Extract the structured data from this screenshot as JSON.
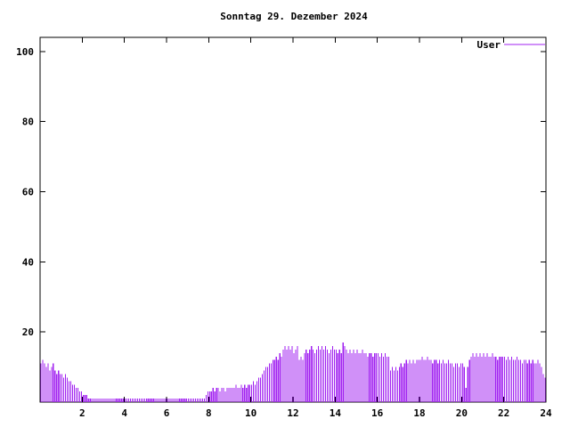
{
  "page": {
    "background": "#ffffff"
  },
  "chart": {
    "title": "Sonntag 29. Dezember 2024",
    "legend": {
      "label": "User",
      "line_color": "#a020f0"
    }
  },
  "chart_data": {
    "type": "bar",
    "title": "Sonntag 29. Dezember 2024",
    "xlabel": "",
    "ylabel": "",
    "x_unit": "hour_of_day",
    "x_range": [
      0,
      24
    ],
    "ylim": [
      0,
      104
    ],
    "x_ticks": [
      2,
      4,
      6,
      8,
      10,
      12,
      14,
      16,
      18,
      20,
      22,
      24
    ],
    "y_ticks": [
      20,
      40,
      60,
      80,
      100
    ],
    "grid": false,
    "legend_position": "top-right",
    "bar_style": "impulses",
    "samples_per_hour": 12,
    "series": [
      {
        "name": "User",
        "color": "#a020f0",
        "values": [
          11,
          12,
          11,
          10,
          11,
          9,
          10,
          11,
          9,
          8,
          9,
          8,
          8,
          7,
          8,
          7,
          6,
          6,
          5,
          5,
          4,
          4,
          3,
          3,
          2,
          2,
          2,
          1,
          1,
          1,
          1,
          1,
          1,
          1,
          1,
          1,
          1,
          1,
          1,
          1,
          1,
          1,
          1,
          1,
          1,
          1,
          1,
          1,
          1,
          1,
          1,
          1,
          1,
          1,
          1,
          1,
          1,
          1,
          1,
          1,
          1,
          1,
          1,
          1,
          1,
          1,
          1,
          1,
          1,
          1,
          1,
          1,
          1,
          1,
          1,
          1,
          1,
          1,
          1,
          1,
          1,
          1,
          1,
          1,
          1,
          1,
          1,
          1,
          1,
          1,
          1,
          1,
          1,
          1,
          2,
          3,
          3,
          3,
          4,
          3,
          4,
          4,
          3,
          4,
          4,
          3,
          4,
          4,
          4,
          4,
          4,
          5,
          4,
          4,
          5,
          4,
          5,
          4,
          5,
          5,
          5,
          6,
          5,
          6,
          7,
          7,
          8,
          9,
          10,
          10,
          11,
          11,
          12,
          12,
          13,
          12,
          14,
          13,
          15,
          16,
          15,
          16,
          15,
          16,
          14,
          15,
          16,
          12,
          13,
          12,
          14,
          15,
          14,
          15,
          16,
          15,
          14,
          15,
          16,
          15,
          16,
          15,
          16,
          15,
          14,
          15,
          16,
          15,
          15,
          14,
          15,
          14,
          17,
          16,
          15,
          14,
          15,
          14,
          15,
          14,
          15,
          14,
          14,
          15,
          14,
          14,
          13,
          14,
          14,
          13,
          14,
          14,
          14,
          13,
          14,
          13,
          14,
          13,
          13,
          9,
          10,
          9,
          10,
          9,
          10,
          11,
          10,
          11,
          12,
          11,
          12,
          11,
          12,
          11,
          12,
          12,
          12,
          13,
          12,
          12,
          13,
          12,
          12,
          11,
          12,
          12,
          11,
          12,
          11,
          12,
          11,
          11,
          12,
          11,
          11,
          10,
          11,
          11,
          10,
          11,
          11,
          10,
          4,
          10,
          12,
          13,
          14,
          13,
          14,
          13,
          14,
          13,
          14,
          13,
          14,
          13,
          13,
          14,
          13,
          13,
          12,
          13,
          13,
          13,
          13,
          12,
          13,
          12,
          13,
          12,
          12,
          13,
          12,
          12,
          11,
          12,
          12,
          11,
          12,
          11,
          12,
          11,
          11,
          12,
          11,
          10,
          8,
          7
        ]
      }
    ]
  }
}
